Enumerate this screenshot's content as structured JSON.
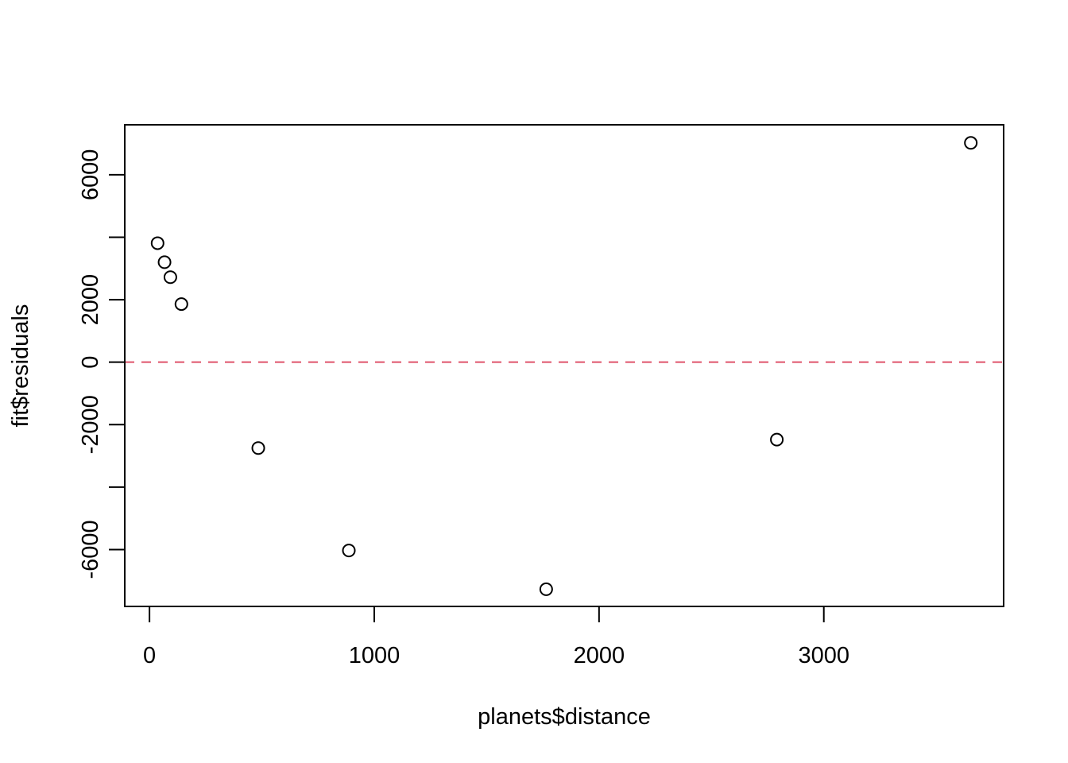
{
  "chart_data": {
    "type": "scatter",
    "xlabel": "planets$distance",
    "ylabel": "fit$residuals",
    "xlim": [
      -110,
      3800
    ],
    "ylim": [
      -7820,
      7600
    ],
    "x_ticks": [
      0,
      1000,
      2000,
      3000
    ],
    "x_tick_labels": [
      "0",
      "1000",
      "2000",
      "3000"
    ],
    "y_ticks": [
      -6000,
      -4000,
      -2000,
      0,
      2000,
      4000,
      6000
    ],
    "y_tick_labels": [
      "-6000",
      "",
      "-2000",
      "0",
      "2000",
      "",
      "6000"
    ],
    "reference_line": {
      "y": 0,
      "style": "dashed",
      "color": "#DF536B"
    },
    "grid": false,
    "legend": "none",
    "point_color": "#000000",
    "points": [
      {
        "x": 36,
        "y": 3810
      },
      {
        "x": 67,
        "y": 3200
      },
      {
        "x": 93,
        "y": 2720
      },
      {
        "x": 142,
        "y": 1860
      },
      {
        "x": 484,
        "y": -2750
      },
      {
        "x": 887,
        "y": -6030
      },
      {
        "x": 1765,
        "y": -7270
      },
      {
        "x": 2791,
        "y": -2480
      },
      {
        "x": 3654,
        "y": 7020
      }
    ]
  }
}
